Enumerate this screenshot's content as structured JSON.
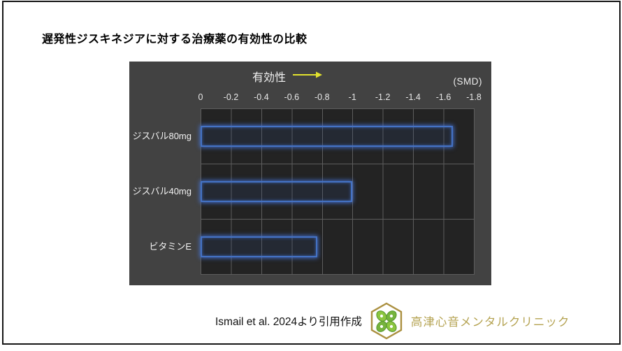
{
  "page": {
    "title": "遅発性ジスキネジアに対する治療薬の有効性の比較"
  },
  "chart": {
    "effectiveness_label": "有効性",
    "unit_label": "(SMD)",
    "axis_ticks": [
      "0",
      "-0.2",
      "-0.4",
      "-0.6",
      "-0.8",
      "-1",
      "-1.2",
      "-1.4",
      "-1.6",
      "-1.8"
    ]
  },
  "chart_data": {
    "type": "bar",
    "orientation": "horizontal",
    "title": "遅発性ジスキネジアに対する治療薬の有効性の比較",
    "xlabel": "有効性 (SMD)",
    "categories": [
      "ジスバル80mg",
      "ジスバル40mg",
      "ビタミンE"
    ],
    "values": [
      -1.66,
      -1.0,
      -0.77
    ],
    "xlim": [
      0,
      -1.8
    ],
    "grid": true,
    "legend": false,
    "bar_outline_color": "#4472c4",
    "plot_background": "#232323",
    "panel_background": "#424242",
    "arrow_color": "#e2e22e"
  },
  "footer": {
    "citation": "Ismail et al. 2024より引用作成",
    "clinic_name": "高津心音メンタルクリニック",
    "clinic_name_color": "#b5a352",
    "logo_hex_color": "#ab9040",
    "logo_leaf_color": "#76b43e"
  }
}
